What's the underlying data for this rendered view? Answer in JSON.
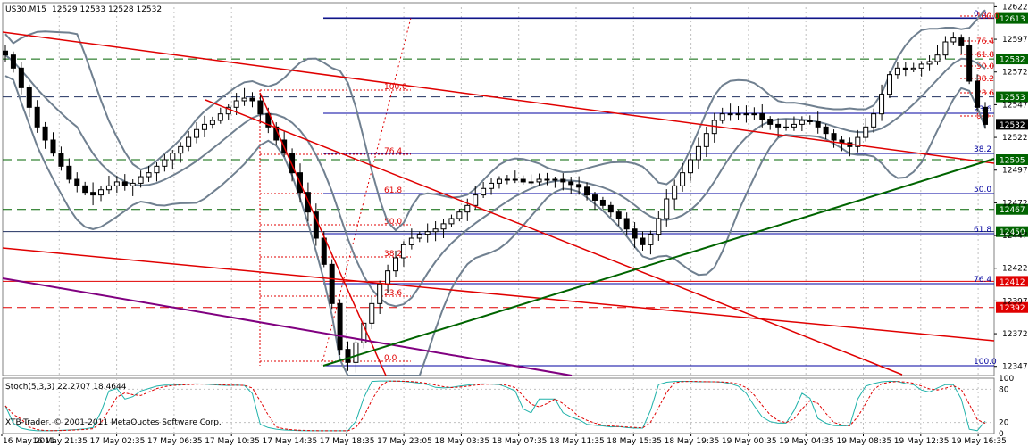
{
  "header": {
    "symbol_tf": "US30,M15",
    "ohlc": "12529 12533 12528 12532"
  },
  "stoch": {
    "label": "Stoch(5,3,3) 22.2707 18.4644",
    "levels": [
      "100",
      "80",
      "20",
      "0"
    ]
  },
  "copyright": "XTB-Trader, © 2001-2011 MetaQuotes Software Corp.",
  "colors": {
    "background": "#ffffff",
    "grid": "#c0c0c0",
    "candle": "#000000",
    "bollinger": "#708090",
    "red_trend": "#e00000",
    "green_trend": "#006400",
    "purple_trend": "#800080",
    "fib_red": "#e00000",
    "fib_blue": "#0000a0",
    "level_label_bg": "#006400",
    "red_label_bg": "#e00000",
    "current_label_bg": "#000000",
    "stoch_main": "#20b2aa",
    "stoch_signal": "#e00000"
  },
  "chart_data": {
    "type": "candlestick",
    "symbol": "US30",
    "timeframe": "M15",
    "current_price": 12532,
    "ylim": [
      12340,
      12625
    ],
    "y_ticks": [
      12622,
      12597,
      12572,
      12547,
      12522,
      12497,
      12472,
      12447,
      12422,
      12397,
      12372,
      12347
    ],
    "x_tick_labels": [
      "16 May 2011",
      "16 May 21:35",
      "17 May 02:35",
      "17 May 06:35",
      "17 May 10:35",
      "17 May 14:35",
      "17 May 18:35",
      "17 May 23:05",
      "18 May 03:35",
      "18 May 07:35",
      "18 May 11:35",
      "18 May 15:35",
      "18 May 19:35",
      "19 May 00:35",
      "19 May 04:35",
      "19 May 08:35",
      "19 May 12:35",
      "19 May 16:35"
    ],
    "horizontal_levels": [
      {
        "value": 12613,
        "style": "solid",
        "label_color": "green"
      },
      {
        "value": 12582,
        "style": "dashed",
        "label_color": "green"
      },
      {
        "value": 12553,
        "style": "dashed",
        "label_color": "green"
      },
      {
        "value": 12532,
        "style": "none",
        "label_color": "black"
      },
      {
        "value": 12505,
        "style": "dashed",
        "label_color": "green"
      },
      {
        "value": 12467,
        "style": "dashed",
        "label_color": "green"
      },
      {
        "value": 12450,
        "style": "solid",
        "label_color": "green"
      },
      {
        "value": 12412,
        "style": "solid",
        "label_color": "red"
      },
      {
        "value": 12392,
        "style": "dashed",
        "label_color": "red"
      }
    ],
    "fibonacci_levels": {
      "left_red": [
        "100.0",
        "76.4",
        "61.8",
        "50.0",
        "38.2",
        "23.6",
        "0.0"
      ],
      "right_blue": [
        "100.0",
        "76.4",
        "61.8",
        "50.0",
        "38.2",
        "23.6",
        "0.0"
      ],
      "small_red": [
        "100.0",
        "76.4",
        "61.8",
        "50.0",
        "38.2",
        "23.6",
        "0.0"
      ]
    },
    "close_path": [
      12585,
      12575,
      12560,
      12545,
      12530,
      12520,
      12510,
      12500,
      12490,
      12485,
      12480,
      12478,
      12482,
      12485,
      12488,
      12485,
      12487,
      12492,
      12495,
      12500,
      12505,
      12510,
      12515,
      12522,
      12528,
      12532,
      12535,
      12540,
      12545,
      12550,
      12552,
      12550,
      12540,
      12530,
      12520,
      12510,
      12495,
      12480,
      12465,
      12445,
      12425,
      12395,
      12360,
      12350,
      12365,
      12380,
      12395,
      12410,
      12420,
      12430,
      12440,
      12445,
      12448,
      12450,
      12452,
      12456,
      12460,
      12465,
      12470,
      12478,
      12483,
      12487,
      12490,
      12490,
      12490,
      12488,
      12488,
      12490,
      12490,
      12490,
      12488,
      12486,
      12484,
      12478,
      12474,
      12470,
      12465,
      12460,
      12452,
      12445,
      12440,
      12448,
      12460,
      12475,
      12485,
      12495,
      12505,
      12515,
      12525,
      12535,
      12540,
      12540,
      12540,
      12540,
      12540,
      12536,
      12532,
      12530,
      12530,
      12532,
      12535,
      12534,
      12530,
      12525,
      12520,
      12518,
      12515,
      12522,
      12530,
      12540,
      12555,
      12570,
      12575,
      12574,
      12575,
      12578,
      12580,
      12585,
      12595,
      12598,
      12592,
      12565,
      12545,
      12532
    ],
    "stochastic": {
      "k_period": 5,
      "d_period": 3,
      "slowing": 3,
      "main": 22.2707,
      "signal": 18.4644,
      "levels": [
        20,
        80
      ],
      "ylim": [
        0,
        100
      ]
    }
  }
}
